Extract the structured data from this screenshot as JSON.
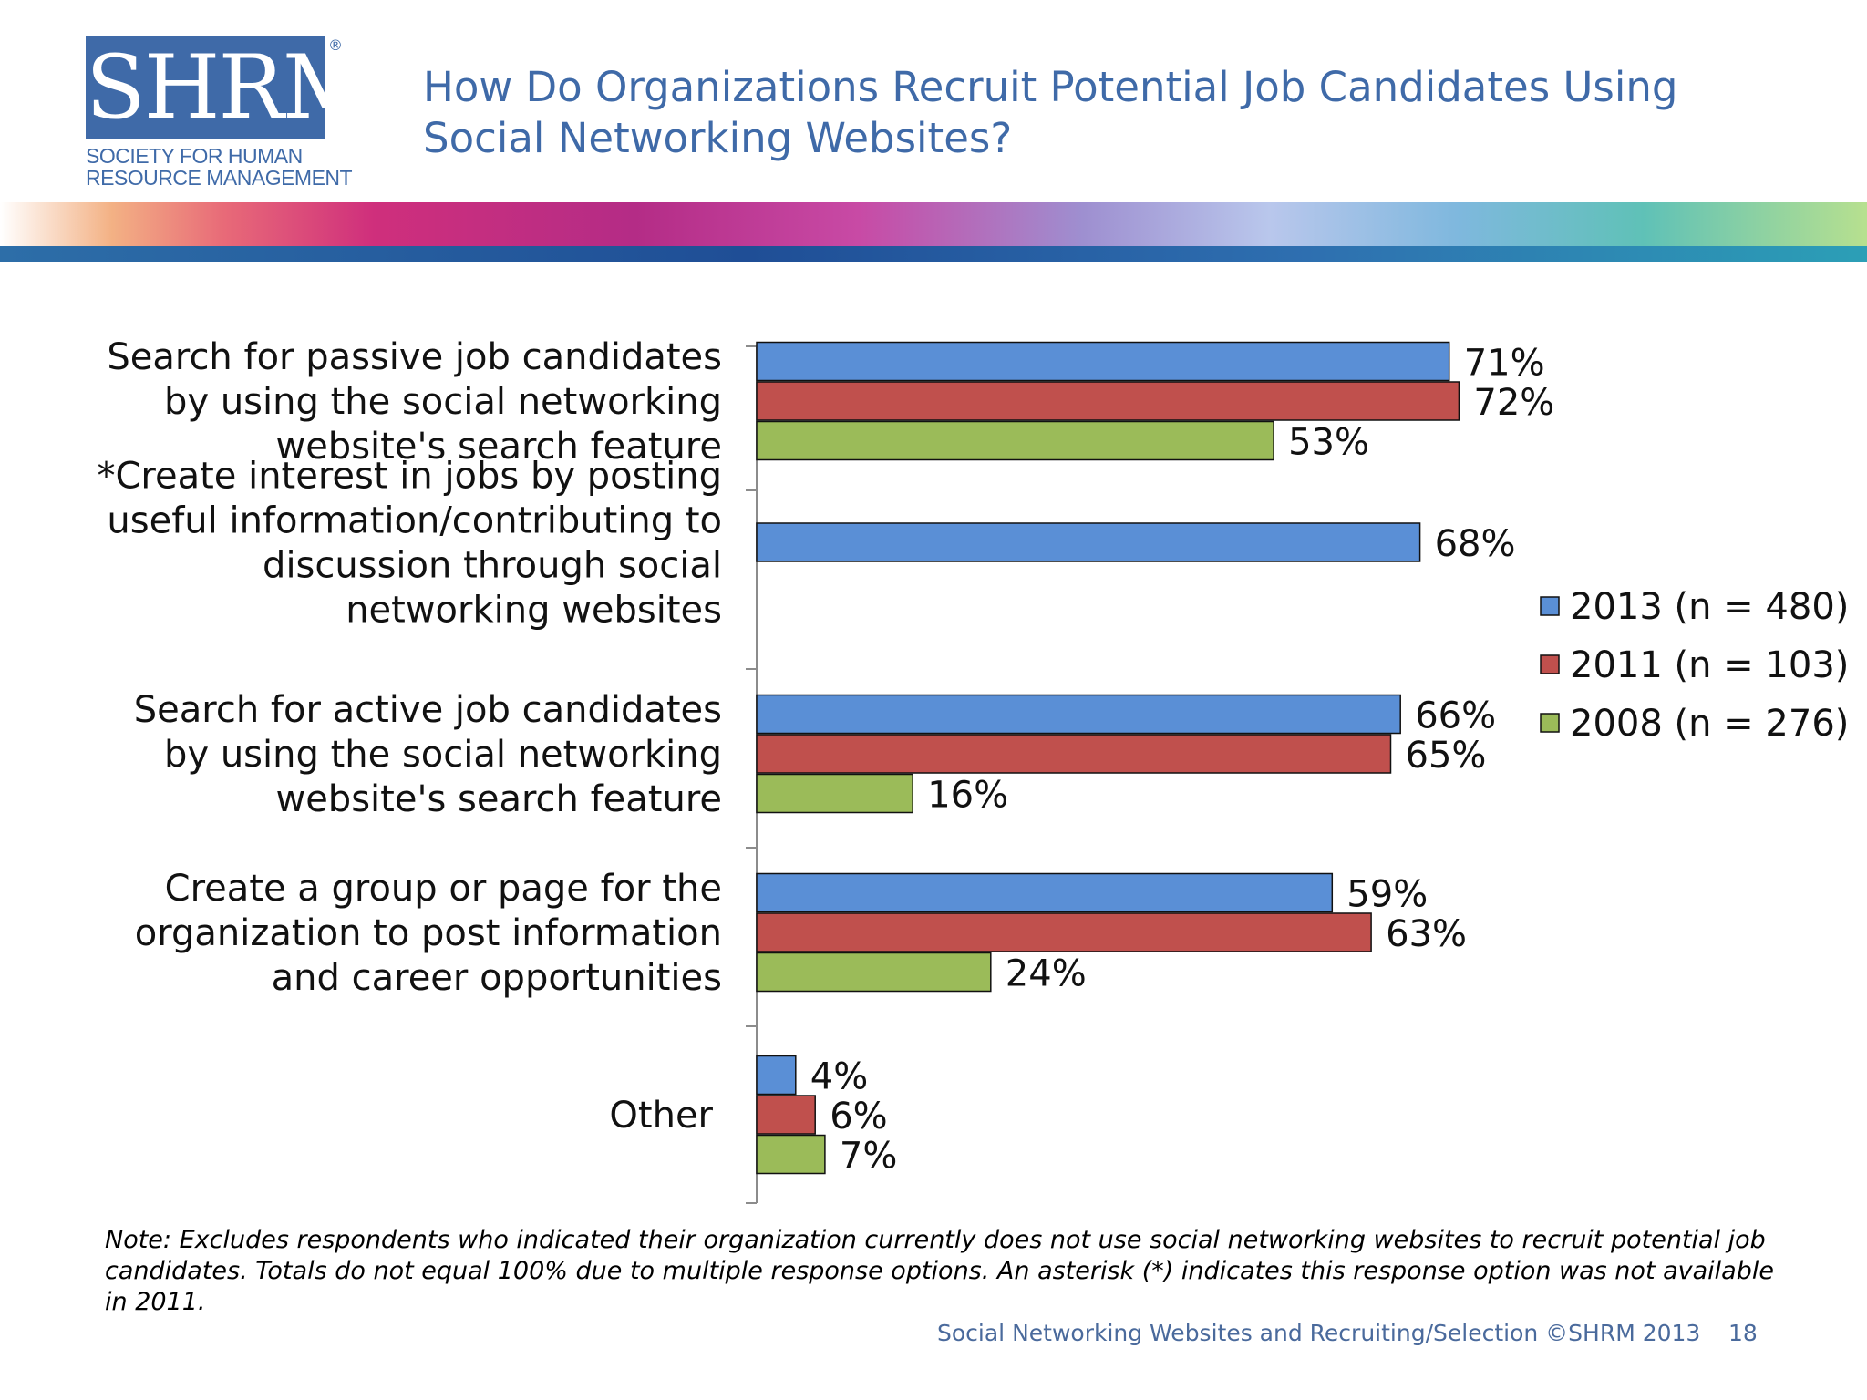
{
  "logo": {
    "main_text": "SHRM",
    "registered_mark": "®",
    "subtitle_line1": "SOCIETY FOR HUMAN",
    "subtitle_line2": "RESOURCE MANAGEMENT"
  },
  "title_lines": [
    "How Do Organizations Recruit Potential Job Candidates Using",
    "Social Networking Websites?"
  ],
  "note": "Note: Excludes respondents who indicated their organization currently does not use social networking websites to recruit potential job candidates. Totals do not equal 100% due to multiple response options. An asterisk (*) indicates this response option was not available in 2011.",
  "footer": {
    "text": "Social Networking Websites and Recruiting/Selection ©SHRM 2013",
    "page_number": "18"
  },
  "colors": {
    "series_2013": "#5a8fd6",
    "series_2011": "#c0504d",
    "series_2008": "#9bbb59",
    "title": "#3f6aa8"
  },
  "chart_data": {
    "type": "bar",
    "orientation": "horizontal",
    "xlim": [
      0,
      100
    ],
    "grid": false,
    "legend_position": "right",
    "value_format": "percent",
    "categories": [
      {
        "lines": [
          "Search for passive job candidates",
          "by using the social networking",
          "website's search feature"
        ]
      },
      {
        "lines": [
          "*Create interest in jobs by posting",
          "useful information/contributing to",
          "discussion through social",
          "networking websites"
        ]
      },
      {
        "lines": [
          "Search for active job candidates",
          "by using the social networking",
          "website's search feature"
        ]
      },
      {
        "lines": [
          "Create a group or page for the",
          "organization to post information",
          "and career opportunities"
        ]
      },
      {
        "lines": [
          "Other"
        ]
      }
    ],
    "series": [
      {
        "name": "2013 (n = 480)",
        "values": [
          71,
          68,
          66,
          59,
          4
        ]
      },
      {
        "name": "2011 (n = 103)",
        "values": [
          72,
          null,
          65,
          63,
          6
        ]
      },
      {
        "name": "2008 (n = 276)",
        "values": [
          53,
          null,
          16,
          24,
          7
        ]
      }
    ]
  }
}
